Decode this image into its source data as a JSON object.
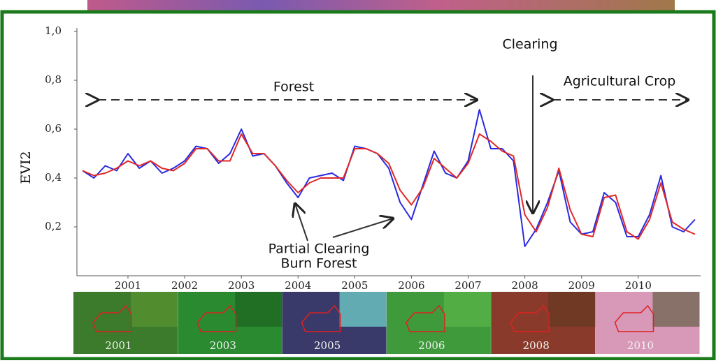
{
  "chart_data": {
    "type": "line",
    "y_label": "EVI2",
    "annotations": [
      "Forest",
      "Clearing",
      "Agricultural Crop",
      "Partial Clearing",
      "Burn Forest"
    ],
    "x": [
      2000.2,
      2000.4,
      2000.6,
      2000.8,
      2001.0,
      2001.2,
      2001.4,
      2001.6,
      2001.8,
      2002.0,
      2002.2,
      2002.4,
      2002.6,
      2002.8,
      2003.0,
      2003.2,
      2003.4,
      2003.6,
      2003.8,
      2004.0,
      2004.2,
      2004.4,
      2004.6,
      2004.8,
      2005.0,
      2005.2,
      2005.4,
      2005.6,
      2005.8,
      2006.0,
      2006.2,
      2006.4,
      2006.6,
      2006.8,
      2007.0,
      2007.2,
      2007.4,
      2007.6,
      2007.8,
      2008.0,
      2008.2,
      2008.4,
      2008.6,
      2008.8,
      2009.0,
      2009.2,
      2009.4,
      2009.6,
      2009.8,
      2010.0,
      2010.2,
      2010.4,
      2010.6,
      2010.8,
      2011.0
    ],
    "series": [
      {
        "color": "#2a2ae0",
        "values": [
          0.43,
          0.4,
          0.45,
          0.43,
          0.5,
          0.44,
          0.47,
          0.42,
          0.44,
          0.47,
          0.53,
          0.52,
          0.46,
          0.5,
          0.6,
          0.49,
          0.5,
          0.45,
          0.38,
          0.32,
          0.4,
          0.41,
          0.42,
          0.39,
          0.53,
          0.52,
          0.5,
          0.44,
          0.3,
          0.23,
          0.37,
          0.51,
          0.42,
          0.4,
          0.47,
          0.68,
          0.52,
          0.52,
          0.47,
          0.12,
          0.19,
          0.3,
          0.43,
          0.22,
          0.17,
          0.18,
          0.34,
          0.3,
          0.16,
          0.16,
          0.25,
          0.41,
          0.2,
          0.18,
          0.23
        ]
      },
      {
        "color": "#e02828",
        "values": [
          0.43,
          0.41,
          0.42,
          0.44,
          0.47,
          0.45,
          0.47,
          0.44,
          0.43,
          0.46,
          0.52,
          0.52,
          0.47,
          0.47,
          0.58,
          0.5,
          0.5,
          0.45,
          0.39,
          0.34,
          0.38,
          0.4,
          0.4,
          0.4,
          0.52,
          0.52,
          0.5,
          0.46,
          0.35,
          0.29,
          0.36,
          0.48,
          0.44,
          0.4,
          0.46,
          0.58,
          0.55,
          0.51,
          0.49,
          0.25,
          0.18,
          0.28,
          0.44,
          0.27,
          0.17,
          0.16,
          0.32,
          0.33,
          0.18,
          0.15,
          0.23,
          0.38,
          0.22,
          0.19,
          0.17
        ]
      }
    ],
    "xlim": [
      2000.1,
      2011.1
    ],
    "xticks": [
      2001,
      2002,
      2003,
      2004,
      2005,
      2006,
      2007,
      2008,
      2009,
      2010
    ],
    "ylim": [
      0,
      1
    ],
    "yticks": [
      {
        "value": 0.2,
        "label": "0,2"
      },
      {
        "value": 0.4,
        "label": "0,4"
      },
      {
        "value": 0.6,
        "label": "0,6"
      },
      {
        "value": 0.8,
        "label": "0,8"
      },
      {
        "value": 1,
        "label": "1,0"
      }
    ],
    "image_labels": [
      "2001",
      "2003",
      "2005",
      "2006",
      "2008",
      "2010"
    ]
  }
}
